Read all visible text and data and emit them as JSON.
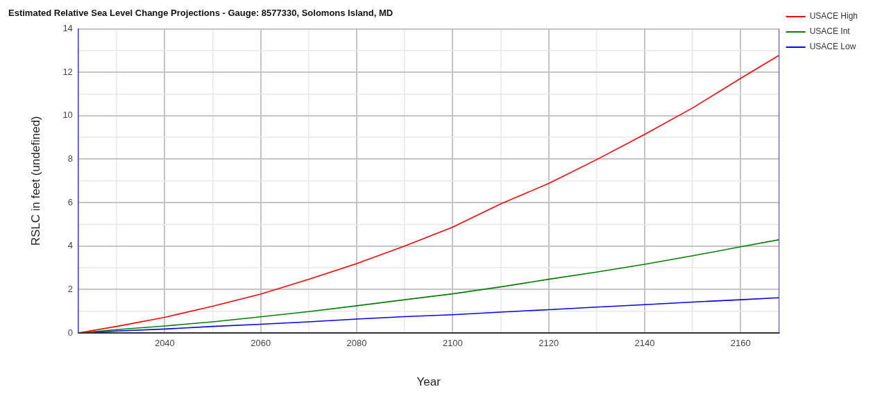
{
  "chart_data": {
    "type": "line",
    "title": "Estimated Relative Sea Level Change Projections - Gauge: 8577330, Solomons Island, MD",
    "xlabel": "Year",
    "ylabel": "RSLC in feet (undefined)",
    "x": [
      2022,
      2030,
      2040,
      2050,
      2060,
      2070,
      2080,
      2090,
      2100,
      2110,
      2120,
      2130,
      2140,
      2150,
      2160,
      2168
    ],
    "series": [
      {
        "name": "USACE High",
        "color": "#ff0000",
        "values": [
          0,
          0.3,
          0.72,
          1.23,
          1.79,
          2.47,
          3.19,
          4.0,
          4.87,
          5.94,
          6.88,
          7.98,
          9.14,
          10.36,
          11.72,
          12.78
        ]
      },
      {
        "name": "USACE Int",
        "color": "#008000",
        "values": [
          0,
          0.15,
          0.32,
          0.51,
          0.74,
          0.98,
          1.25,
          1.53,
          1.8,
          2.12,
          2.47,
          2.8,
          3.16,
          3.55,
          3.97,
          4.29
        ]
      },
      {
        "name": "USACE Low",
        "color": "#0000ff",
        "values": [
          0,
          0.09,
          0.18,
          0.3,
          0.4,
          0.51,
          0.64,
          0.75,
          0.84,
          0.96,
          1.07,
          1.19,
          1.3,
          1.42,
          1.53,
          1.62
        ]
      }
    ],
    "xlim": [
      2022,
      2168
    ],
    "xticks": [
      {
        "value": 2030,
        "label": null
      },
      2040,
      {
        "value": 2050,
        "label": null
      },
      2060,
      {
        "value": 2070,
        "label": null
      },
      2080,
      {
        "value": 2090,
        "label": null
      },
      2100,
      {
        "value": 2110,
        "label": null
      },
      2120,
      {
        "value": 2130,
        "label": null
      },
      2140,
      {
        "value": 2150,
        "label": null
      },
      2160
    ],
    "ylim": [
      0,
      14
    ],
    "yticks": [
      0,
      {
        "value": 1,
        "label": null
      },
      2,
      {
        "value": 3,
        "label": null
      },
      4,
      {
        "value": 5,
        "label": null
      },
      6,
      {
        "value": 7,
        "label": null
      },
      8,
      {
        "value": 9,
        "label": null
      },
      10,
      {
        "value": 11,
        "label": null
      },
      12,
      {
        "value": 13,
        "label": null
      },
      14
    ],
    "grid": true,
    "legend": "top right",
    "marker": "none",
    "line_style": "solid"
  }
}
